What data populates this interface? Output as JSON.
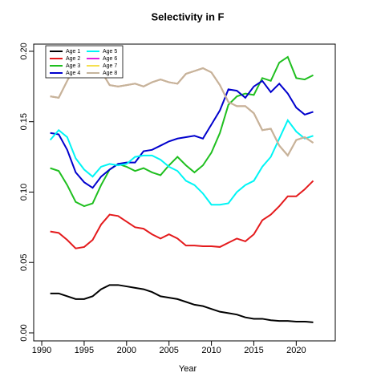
{
  "chart_data": {
    "type": "line",
    "title": "Selectivity in F",
    "x_label": "Year",
    "x": [
      1991,
      1992,
      1993,
      1994,
      1995,
      1996,
      1997,
      1998,
      1999,
      2000,
      2001,
      2002,
      2003,
      2004,
      2005,
      2006,
      2007,
      2008,
      2009,
      2010,
      2011,
      2012,
      2013,
      2014,
      2015,
      2016,
      2017,
      2018,
      2019,
      2020,
      2021,
      2022
    ],
    "series": [
      {
        "name": "Age 1",
        "color": "#000000",
        "values": [
          0.028,
          0.028,
          0.026,
          0.024,
          0.024,
          0.026,
          0.031,
          0.034,
          0.034,
          0.033,
          0.032,
          0.031,
          0.029,
          0.026,
          0.025,
          0.024,
          0.022,
          0.02,
          0.019,
          0.017,
          0.015,
          0.014,
          0.013,
          0.011,
          0.01,
          0.01,
          0.009,
          0.0085,
          0.0085,
          0.008,
          0.008,
          0.0075
        ]
      },
      {
        "name": "Age 2",
        "color": "#e41a1c",
        "values": [
          0.072,
          0.071,
          0.066,
          0.06,
          0.061,
          0.066,
          0.077,
          0.084,
          0.083,
          0.079,
          0.075,
          0.074,
          0.07,
          0.067,
          0.07,
          0.067,
          0.062,
          0.062,
          0.0615,
          0.0615,
          0.061,
          0.064,
          0.067,
          0.065,
          0.07,
          0.08,
          0.084,
          0.09,
          0.097,
          0.097,
          0.102,
          0.108
        ]
      },
      {
        "name": "Age 3",
        "color": "#1fbf1f",
        "values": [
          0.117,
          0.115,
          0.105,
          0.093,
          0.09,
          0.092,
          0.105,
          0.116,
          0.12,
          0.118,
          0.115,
          0.117,
          0.114,
          0.112,
          0.119,
          0.125,
          0.119,
          0.114,
          0.119,
          0.128,
          0.142,
          0.162,
          0.168,
          0.17,
          0.169,
          0.181,
          0.179,
          0.192,
          0.196,
          0.181,
          0.18,
          0.183
        ]
      },
      {
        "name": "Age 4",
        "color": "#0000cd",
        "values": [
          0.142,
          0.141,
          0.13,
          0.114,
          0.107,
          0.103,
          0.111,
          0.116,
          0.12,
          0.121,
          0.121,
          0.129,
          0.13,
          0.133,
          0.136,
          0.138,
          0.139,
          0.14,
          0.138,
          0.148,
          0.158,
          0.173,
          0.172,
          0.167,
          0.175,
          0.179,
          0.171,
          0.177,
          0.17,
          0.16,
          0.155,
          0.157
        ]
      },
      {
        "name": "Age 5",
        "color": "#00f5f5",
        "values": [
          0.137,
          0.144,
          0.139,
          0.124,
          0.116,
          0.111,
          0.118,
          0.12,
          0.119,
          0.12,
          0.125,
          0.126,
          0.126,
          0.123,
          0.118,
          0.115,
          0.108,
          0.105,
          0.099,
          0.091,
          0.091,
          0.092,
          0.1,
          0.105,
          0.108,
          0.118,
          0.125,
          0.138,
          0.151,
          0.143,
          0.138,
          0.14
        ]
      },
      {
        "name": "Age 6",
        "color": "#e020e0",
        "values": [
          0.168,
          0.167,
          0.179,
          0.19,
          0.2,
          0.19,
          0.186,
          0.176,
          0.175,
          0.176,
          0.177,
          0.175,
          0.178,
          0.18,
          0.178,
          0.177,
          0.184,
          0.186,
          0.188,
          0.185,
          0.176,
          0.164,
          0.161,
          0.161,
          0.156,
          0.144,
          0.145,
          0.133,
          0.126,
          0.137,
          0.139,
          0.135
        ]
      },
      {
        "name": "Age 7",
        "color": "#f5e050",
        "values": [
          0.168,
          0.167,
          0.179,
          0.19,
          0.2,
          0.19,
          0.186,
          0.176,
          0.175,
          0.176,
          0.177,
          0.175,
          0.178,
          0.18,
          0.178,
          0.177,
          0.184,
          0.186,
          0.188,
          0.185,
          0.176,
          0.164,
          0.161,
          0.161,
          0.156,
          0.144,
          0.145,
          0.133,
          0.126,
          0.137,
          0.139,
          0.135
        ]
      },
      {
        "name": "Age 8",
        "color": "#c4b49c",
        "values": [
          0.168,
          0.167,
          0.179,
          0.19,
          0.2,
          0.19,
          0.186,
          0.176,
          0.175,
          0.176,
          0.177,
          0.175,
          0.178,
          0.18,
          0.178,
          0.177,
          0.184,
          0.186,
          0.188,
          0.185,
          0.176,
          0.164,
          0.161,
          0.161,
          0.156,
          0.144,
          0.145,
          0.133,
          0.126,
          0.137,
          0.139,
          0.135
        ]
      }
    ],
    "xlim": [
      1989.05,
      2024.6
    ],
    "xticks": [
      1990,
      1995,
      2000,
      2005,
      2010,
      2015,
      2020
    ],
    "ylim": [
      -0.0057,
      0.2051
    ],
    "yticks": [
      {
        "value": 0,
        "label": "0.00"
      },
      {
        "value": 0.05,
        "label": "0.05"
      },
      {
        "value": 0.1,
        "label": "0.10"
      },
      {
        "value": 0.15,
        "label": "0.15"
      },
      {
        "value": 0.2,
        "label": "0.20"
      }
    ],
    "legend": "top-left"
  }
}
